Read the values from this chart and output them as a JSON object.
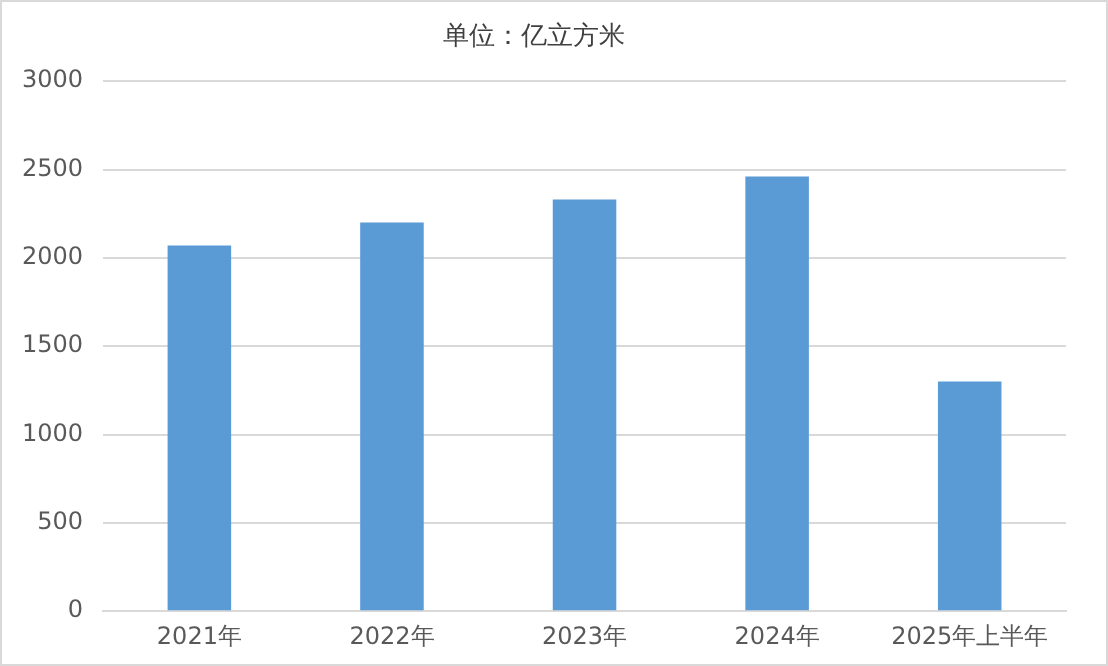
{
  "chart_data": {
    "type": "bar",
    "title": "单位：亿立方米",
    "categories": [
      "2021年",
      "2022年",
      "2023年",
      "2024年",
      "2025年上半年"
    ],
    "values": [
      2070,
      2200,
      2330,
      2460,
      1300
    ],
    "color": "#5b9bd5",
    "ylim": [
      0,
      3000
    ],
    "yticks": [
      0,
      500,
      1000,
      1500,
      2000,
      2500,
      3000
    ],
    "grid": "y"
  }
}
